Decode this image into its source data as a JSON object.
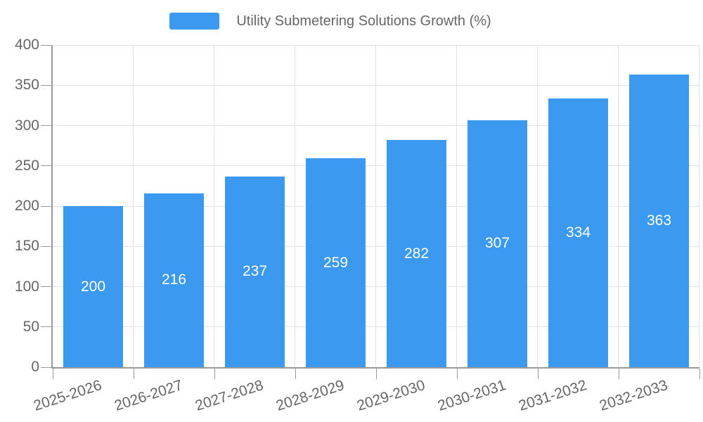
{
  "legend": {
    "label": "Utility Submetering Solutions Growth (%)"
  },
  "chart_data": {
    "type": "bar",
    "title": "Utility Submetering Solutions Growth (%)",
    "categories": [
      "2025-2026",
      "2026-2027",
      "2027-2028",
      "2028-2029",
      "2029-2030",
      "2030-2031",
      "2031-2032",
      "2032-2033"
    ],
    "values": [
      200,
      216,
      237,
      259,
      282,
      307,
      334,
      363
    ],
    "xlabel": "",
    "ylabel": "",
    "ylim": [
      0,
      400
    ],
    "yticks": [
      0,
      50,
      100,
      150,
      200,
      250,
      300,
      350,
      400
    ],
    "grid": true,
    "legend_position": "top",
    "value_labels": "centered-inside-bars"
  },
  "colors": {
    "accent": "#3b99f0",
    "grid": "#e2e2e2",
    "axis": "#999999",
    "text": "#666666",
    "value_label": "#ffffff",
    "background": "#ffffff"
  }
}
